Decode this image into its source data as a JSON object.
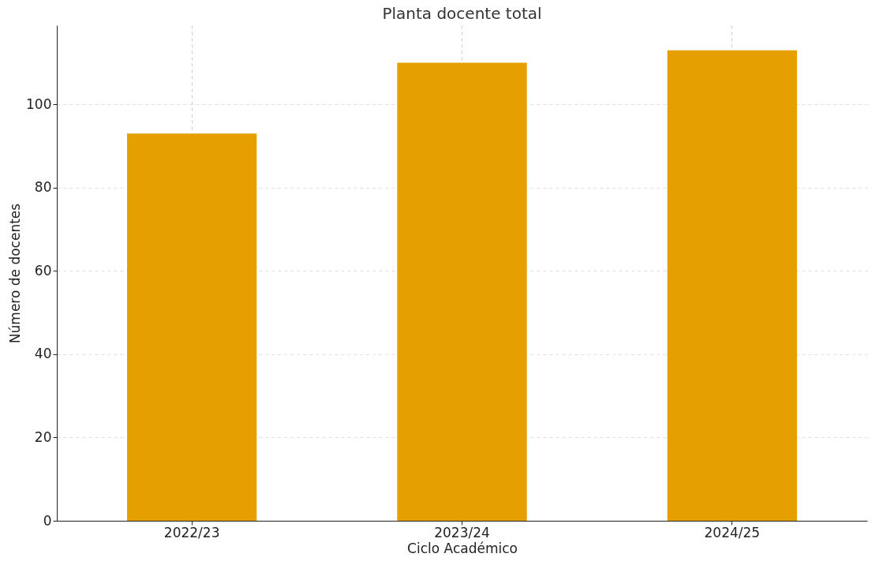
{
  "chart_data": {
    "type": "bar",
    "title": "Planta docente total",
    "xlabel": "Ciclo Académico",
    "ylabel": "Número de docentes",
    "categories": [
      "2022/23",
      "2023/24",
      "2024/25"
    ],
    "values": [
      93,
      110,
      113
    ],
    "color": "#e5a000",
    "ylim": [
      0,
      119
    ],
    "yticks": [
      0,
      20,
      40,
      60,
      80,
      100
    ],
    "grid": true
  }
}
